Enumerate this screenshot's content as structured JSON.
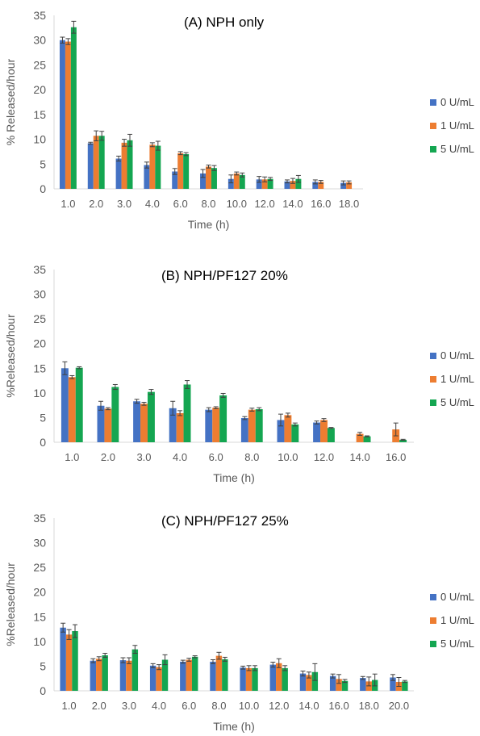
{
  "colors": {
    "series0": "#4472c4",
    "series1": "#ed7d31",
    "series2": "#14a651",
    "axis": "#d9d9d9",
    "error": "#404040"
  },
  "chart_data": [
    {
      "type": "bar",
      "title": "(A) NPH only",
      "xlabel": "Time (h)",
      "ylabel": "% Released/hour",
      "ylim": [
        0,
        35
      ],
      "yticks": [
        0,
        5,
        10,
        15,
        20,
        25,
        30,
        35
      ],
      "legend": "right",
      "grid": false,
      "categories": [
        "1.0",
        "2.0",
        "3.0",
        "4.0",
        "6.0",
        "8.0",
        "10.0",
        "12.0",
        "14.0",
        "16.0",
        "18.0"
      ],
      "series": [
        {
          "name": "0 U/mL",
          "values": [
            30.0,
            9.2,
            6.1,
            4.8,
            3.5,
            3.1,
            2.0,
            1.9,
            1.5,
            1.4,
            1.2
          ],
          "errors": [
            0.6,
            0.2,
            0.5,
            0.6,
            0.6,
            0.8,
            0.8,
            0.6,
            0.3,
            0.4,
            0.4
          ]
        },
        {
          "name": "1 U/mL",
          "values": [
            29.7,
            10.7,
            9.3,
            8.9,
            7.2,
            4.5,
            3.1,
            1.9,
            1.6,
            1.4,
            1.3
          ],
          "errors": [
            0.6,
            1.0,
            0.7,
            0.4,
            0.3,
            0.3,
            0.3,
            0.5,
            0.5,
            0.3,
            0.3
          ]
        },
        {
          "name": "5 U/mL",
          "values": [
            32.6,
            10.7,
            9.8,
            8.7,
            7.0,
            4.2,
            2.8,
            2.0,
            2.0,
            null,
            null
          ],
          "errors": [
            1.2,
            0.9,
            1.2,
            0.9,
            0.3,
            0.5,
            0.4,
            0.3,
            0.7,
            null,
            null
          ]
        }
      ]
    },
    {
      "type": "bar",
      "title": "(B) NPH/PF127 20%",
      "xlabel": "Time (h)",
      "ylabel": "%Released/hour",
      "ylim": [
        0,
        35
      ],
      "yticks": [
        0,
        5,
        10,
        15,
        20,
        25,
        30,
        35
      ],
      "legend": "right",
      "grid": false,
      "categories": [
        "1.0",
        "2.0",
        "3.0",
        "4.0",
        "6.0",
        "8.0",
        "10.0",
        "12.0",
        "14.0",
        "16.0"
      ],
      "series": [
        {
          "name": "0 U/mL",
          "values": [
            15.0,
            7.4,
            8.3,
            6.9,
            6.6,
            4.9,
            4.5,
            4.0,
            null,
            null
          ],
          "errors": [
            1.3,
            0.9,
            0.4,
            1.4,
            0.4,
            0.3,
            1.2,
            0.3,
            null,
            null
          ]
        },
        {
          "name": "1 U/mL",
          "values": [
            13.2,
            6.8,
            7.8,
            5.9,
            7.0,
            6.6,
            5.5,
            4.5,
            1.7,
            2.6
          ],
          "errors": [
            0.3,
            0.2,
            0.3,
            0.5,
            0.2,
            0.3,
            0.4,
            0.3,
            0.3,
            1.3
          ]
        },
        {
          "name": "5 U/mL",
          "values": [
            15.1,
            11.2,
            10.2,
            11.7,
            9.5,
            6.7,
            3.6,
            2.9,
            1.2,
            0.5
          ],
          "errors": [
            0.2,
            0.5,
            0.5,
            0.8,
            0.4,
            0.3,
            0.3,
            0.1,
            0.1,
            0.1
          ]
        }
      ]
    },
    {
      "type": "bar",
      "title": "(C) NPH/PF127 25%",
      "xlabel": "Time (h)",
      "ylabel": "%Released/hour",
      "ylim": [
        0,
        35
      ],
      "yticks": [
        0,
        5,
        10,
        15,
        20,
        25,
        30,
        35
      ],
      "legend": "right",
      "grid": false,
      "categories": [
        "1.0",
        "2.0",
        "3.0",
        "4.0",
        "6.0",
        "8.0",
        "10.0",
        "12.0",
        "14.0",
        "16.0",
        "18.0",
        "20.0"
      ],
      "series": [
        {
          "name": "0 U/mL",
          "values": [
            12.8,
            6.1,
            6.2,
            5.1,
            5.9,
            5.9,
            4.7,
            5.3,
            3.5,
            3.0,
            2.6,
            2.7
          ],
          "errors": [
            0.9,
            0.4,
            0.5,
            0.4,
            0.3,
            0.4,
            0.3,
            0.5,
            0.5,
            0.4,
            0.3,
            0.6
          ]
        },
        {
          "name": "1 U/mL",
          "values": [
            11.4,
            6.5,
            6.1,
            4.8,
            6.3,
            7.1,
            4.6,
            5.6,
            3.2,
            2.4,
            1.9,
            1.8
          ],
          "errors": [
            1.0,
            0.4,
            0.6,
            0.5,
            0.3,
            0.7,
            0.5,
            0.9,
            0.6,
            0.9,
            0.9,
            0.9
          ]
        },
        {
          "name": "5 U/mL",
          "values": [
            12.1,
            7.2,
            8.4,
            6.3,
            6.9,
            6.4,
            4.6,
            4.6,
            3.8,
            2.0,
            2.2,
            1.9
          ],
          "errors": [
            1.3,
            0.4,
            0.8,
            1.0,
            0.2,
            0.4,
            0.5,
            0.5,
            1.7,
            0.3,
            1.2,
            0.2
          ]
        }
      ]
    }
  ]
}
